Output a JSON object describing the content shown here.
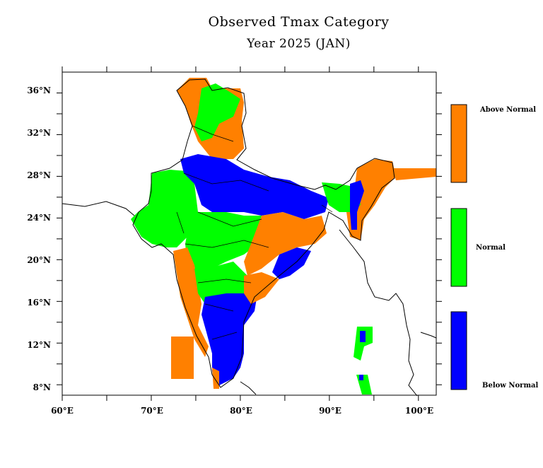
{
  "title": "Observed Tmax Category",
  "subtitle": "Year 2025 (JAN)",
  "axes": {
    "x_ticks": [
      "60°E",
      "70°E",
      "80°E",
      "90°E",
      "100°E"
    ],
    "y_ticks": [
      "36°N",
      "32°N",
      "28°N",
      "24°N",
      "20°N",
      "16°N",
      "12°N",
      "8°N"
    ]
  },
  "legend": {
    "above": {
      "label": "Above Normal",
      "color": "#ff8000"
    },
    "normal": {
      "label": "Normal",
      "color": "#00ff00"
    },
    "below": {
      "label": "Below Normal",
      "color": "#0000ff"
    }
  },
  "map_extent": {
    "lon_min": 60,
    "lon_max": 102,
    "lat_min": 7,
    "lat_max": 38
  }
}
